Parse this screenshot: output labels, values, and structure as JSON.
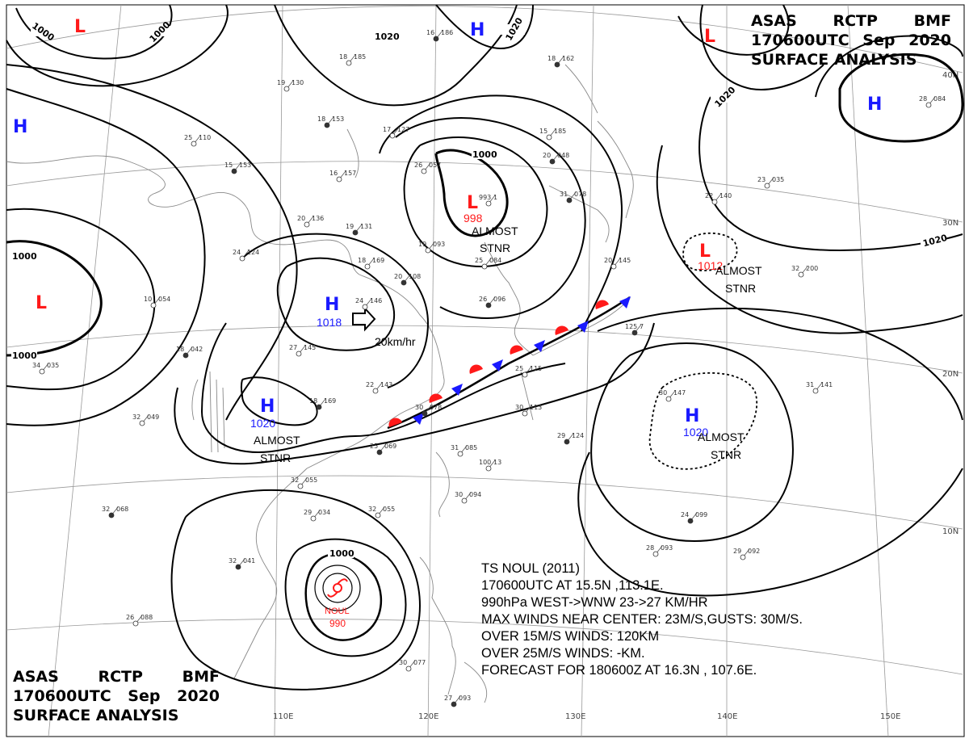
{
  "header": {
    "agency": "ASAS",
    "station": "RCTP",
    "office": "BMF",
    "time": "170600UTC",
    "month": "Sep",
    "year": "2020",
    "product": "SURFACE ANALYSIS"
  },
  "typhoon_info": {
    "lines": [
      "TS NOUL (2011)",
      "170600UTC AT 15.5N ,113.1E.",
      "990hPa WEST->WNW 23->27 KM/HR",
      "MAX WINDS NEAR CENTER: 23M/S,GUSTS: 30M/S.",
      "OVER 15M/S WINDS: 120KM",
      "OVER 25M/S WINDS: -KM.",
      "FORECAST FOR 180600Z AT 16.3N , 107.6E."
    ]
  },
  "pressure_systems": [
    {
      "type": "L",
      "pressure": "",
      "note": ""
    },
    {
      "type": "H",
      "pressure": "",
      "note": ""
    },
    {
      "type": "L",
      "pressure": "",
      "note": ""
    },
    {
      "type": "L",
      "pressure": "998",
      "note": "ALMOST STNR"
    },
    {
      "type": "H",
      "pressure": "1018",
      "note": "",
      "motion": "20km/hr"
    },
    {
      "type": "H",
      "pressure": "1020",
      "note": "ALMOST STNR"
    },
    {
      "type": "L",
      "pressure": "",
      "note": ""
    },
    {
      "type": "H",
      "pressure": "",
      "note": ""
    },
    {
      "type": "L",
      "pressure": "1012",
      "note": "ALMOST STNR"
    },
    {
      "type": "H",
      "pressure": "1020",
      "note": "ALMOST STNR"
    },
    {
      "type": "H",
      "pressure": "",
      "note": ""
    }
  ],
  "typhoon": {
    "name": "NOUL",
    "pressure": "990"
  },
  "isobar_labels": [
    "1000",
    "1000",
    "1020",
    "1020",
    "1000",
    "1000",
    "1000",
    "1020",
    "1020",
    "1000"
  ],
  "latitude_labels": [
    "40N",
    "30N",
    "20N",
    "10N"
  ],
  "longitude_labels": [
    "110E",
    "120E",
    "130E",
    "140E",
    "150E"
  ],
  "station_plots": [
    {
      "t": "16",
      "p": "186"
    },
    {
      "t": "19",
      "p": "130"
    },
    {
      "t": "18",
      "p": "185"
    },
    {
      "t": "18",
      "p": "153"
    },
    {
      "t": "17",
      "p": "127"
    },
    {
      "t": "25",
      "p": "110"
    },
    {
      "t": "15",
      "p": "153"
    },
    {
      "t": "16",
      "p": "157"
    },
    {
      "t": "20",
      "p": "136"
    },
    {
      "t": "19",
      "p": "131"
    },
    {
      "t": "24",
      "p": "124"
    },
    {
      "t": "18",
      "p": "169"
    },
    {
      "t": "20",
      "p": "108"
    },
    {
      "t": "19",
      "p": "093"
    },
    {
      "t": "25",
      "p": "084"
    },
    {
      "t": "26",
      "p": "096"
    },
    {
      "t": "24",
      "p": "146"
    },
    {
      "t": "10",
      "p": "054"
    },
    {
      "t": "18",
      "p": "042"
    },
    {
      "t": "27",
      "p": "145"
    },
    {
      "t": "22",
      "p": "143"
    },
    {
      "t": "18",
      "p": "169"
    },
    {
      "t": "34",
      "p": "035"
    },
    {
      "t": "32",
      "p": "049"
    },
    {
      "t": "25",
      "p": "069"
    },
    {
      "t": "31",
      "p": "085"
    },
    {
      "t": "32",
      "p": "055"
    },
    {
      "t": "32",
      "p": "068"
    },
    {
      "t": "29",
      "p": "034"
    },
    {
      "t": "32",
      "p": "055"
    },
    {
      "t": "30",
      "p": "078"
    },
    {
      "t": "30",
      "p": "113"
    },
    {
      "t": "25",
      "p": "115"
    },
    {
      "t": "29",
      "p": "124"
    },
    {
      "t": "100",
      "p": "13"
    },
    {
      "t": "30",
      "p": "094"
    },
    {
      "t": "32",
      "p": "041"
    },
    {
      "t": "26",
      "p": "088"
    },
    {
      "t": "30",
      "p": "077"
    },
    {
      "t": "27",
      "p": "093"
    },
    {
      "t": "28",
      "p": "093"
    },
    {
      "t": "29",
      "p": "092"
    },
    {
      "t": "24",
      "p": "099"
    },
    {
      "t": "30",
      "p": "147"
    },
    {
      "t": "31",
      "p": "141"
    },
    {
      "t": "125",
      "p": "7"
    },
    {
      "t": "32",
      "p": "200"
    },
    {
      "t": "22",
      "p": "140"
    },
    {
      "t": "20",
      "p": "048"
    },
    {
      "t": "15",
      "p": "185"
    },
    {
      "t": "993",
      "p": "1"
    },
    {
      "t": "31",
      "p": "078"
    },
    {
      "t": "26",
      "p": "057"
    },
    {
      "t": "20",
      "p": "145"
    },
    {
      "t": "18",
      "p": "162"
    },
    {
      "t": "28",
      "p": "084"
    },
    {
      "t": "23",
      "p": "035"
    }
  ],
  "colors": {
    "high": "#1a1aff",
    "low": "#ff1a1a",
    "isobar": "#000000",
    "coast": "#888888",
    "grid": "#999999",
    "warm_front": "#ff1a1a",
    "cold_front": "#1a1aff"
  }
}
